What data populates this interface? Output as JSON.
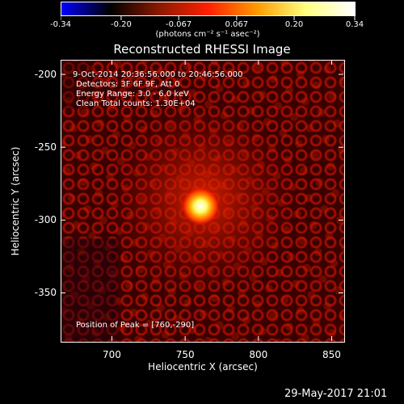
{
  "colorbar": {
    "tick_labels": [
      "-0.34",
      "-0.20",
      "-0.067",
      "0.067",
      "0.20",
      "0.34"
    ],
    "tick_values": [
      -0.34,
      -0.2,
      -0.067,
      0.067,
      0.2,
      0.34
    ],
    "range": [
      -0.34,
      0.34
    ],
    "units": "(photons cm⁻² s⁻¹ asec⁻²)",
    "colors": [
      "#0000ff",
      "#000000",
      "#8a1a00",
      "#ff2000",
      "#ff9a00",
      "#ffff80",
      "#ffffff"
    ]
  },
  "title": "Reconstructed RHESSI Image",
  "info": {
    "time_range": "9-Oct-2014 20:36:56.000 to 20:46:56.000",
    "detectors": "Detectors: 3F 6F 9F, Att 0",
    "energy": "Energy Range: 3.0 - 6.0 keV",
    "clean": "Clean    Total counts: 1.30E+04",
    "peak": "Position of Peak = [760,-290]"
  },
  "axes": {
    "xlabel": "Heliocentric X (arcsec)",
    "ylabel": "Heliocentric Y (arcsec)",
    "xticks": [
      "700",
      "750",
      "800",
      "850"
    ],
    "xtick_values": [
      700,
      750,
      800,
      850
    ],
    "yticks": [
      "-200",
      "-250",
      "-300",
      "-350"
    ],
    "ytick_values": [
      -200,
      -250,
      -300,
      -350
    ],
    "xrange": [
      665,
      858
    ],
    "yrange": [
      -383,
      -190
    ]
  },
  "map": {
    "peak": [
      760,
      -290
    ],
    "colors": {
      "background": "#1a0000",
      "ripple": "#c01000",
      "core": "#ffffff"
    }
  },
  "footer": "29-May-2017 21:01"
}
